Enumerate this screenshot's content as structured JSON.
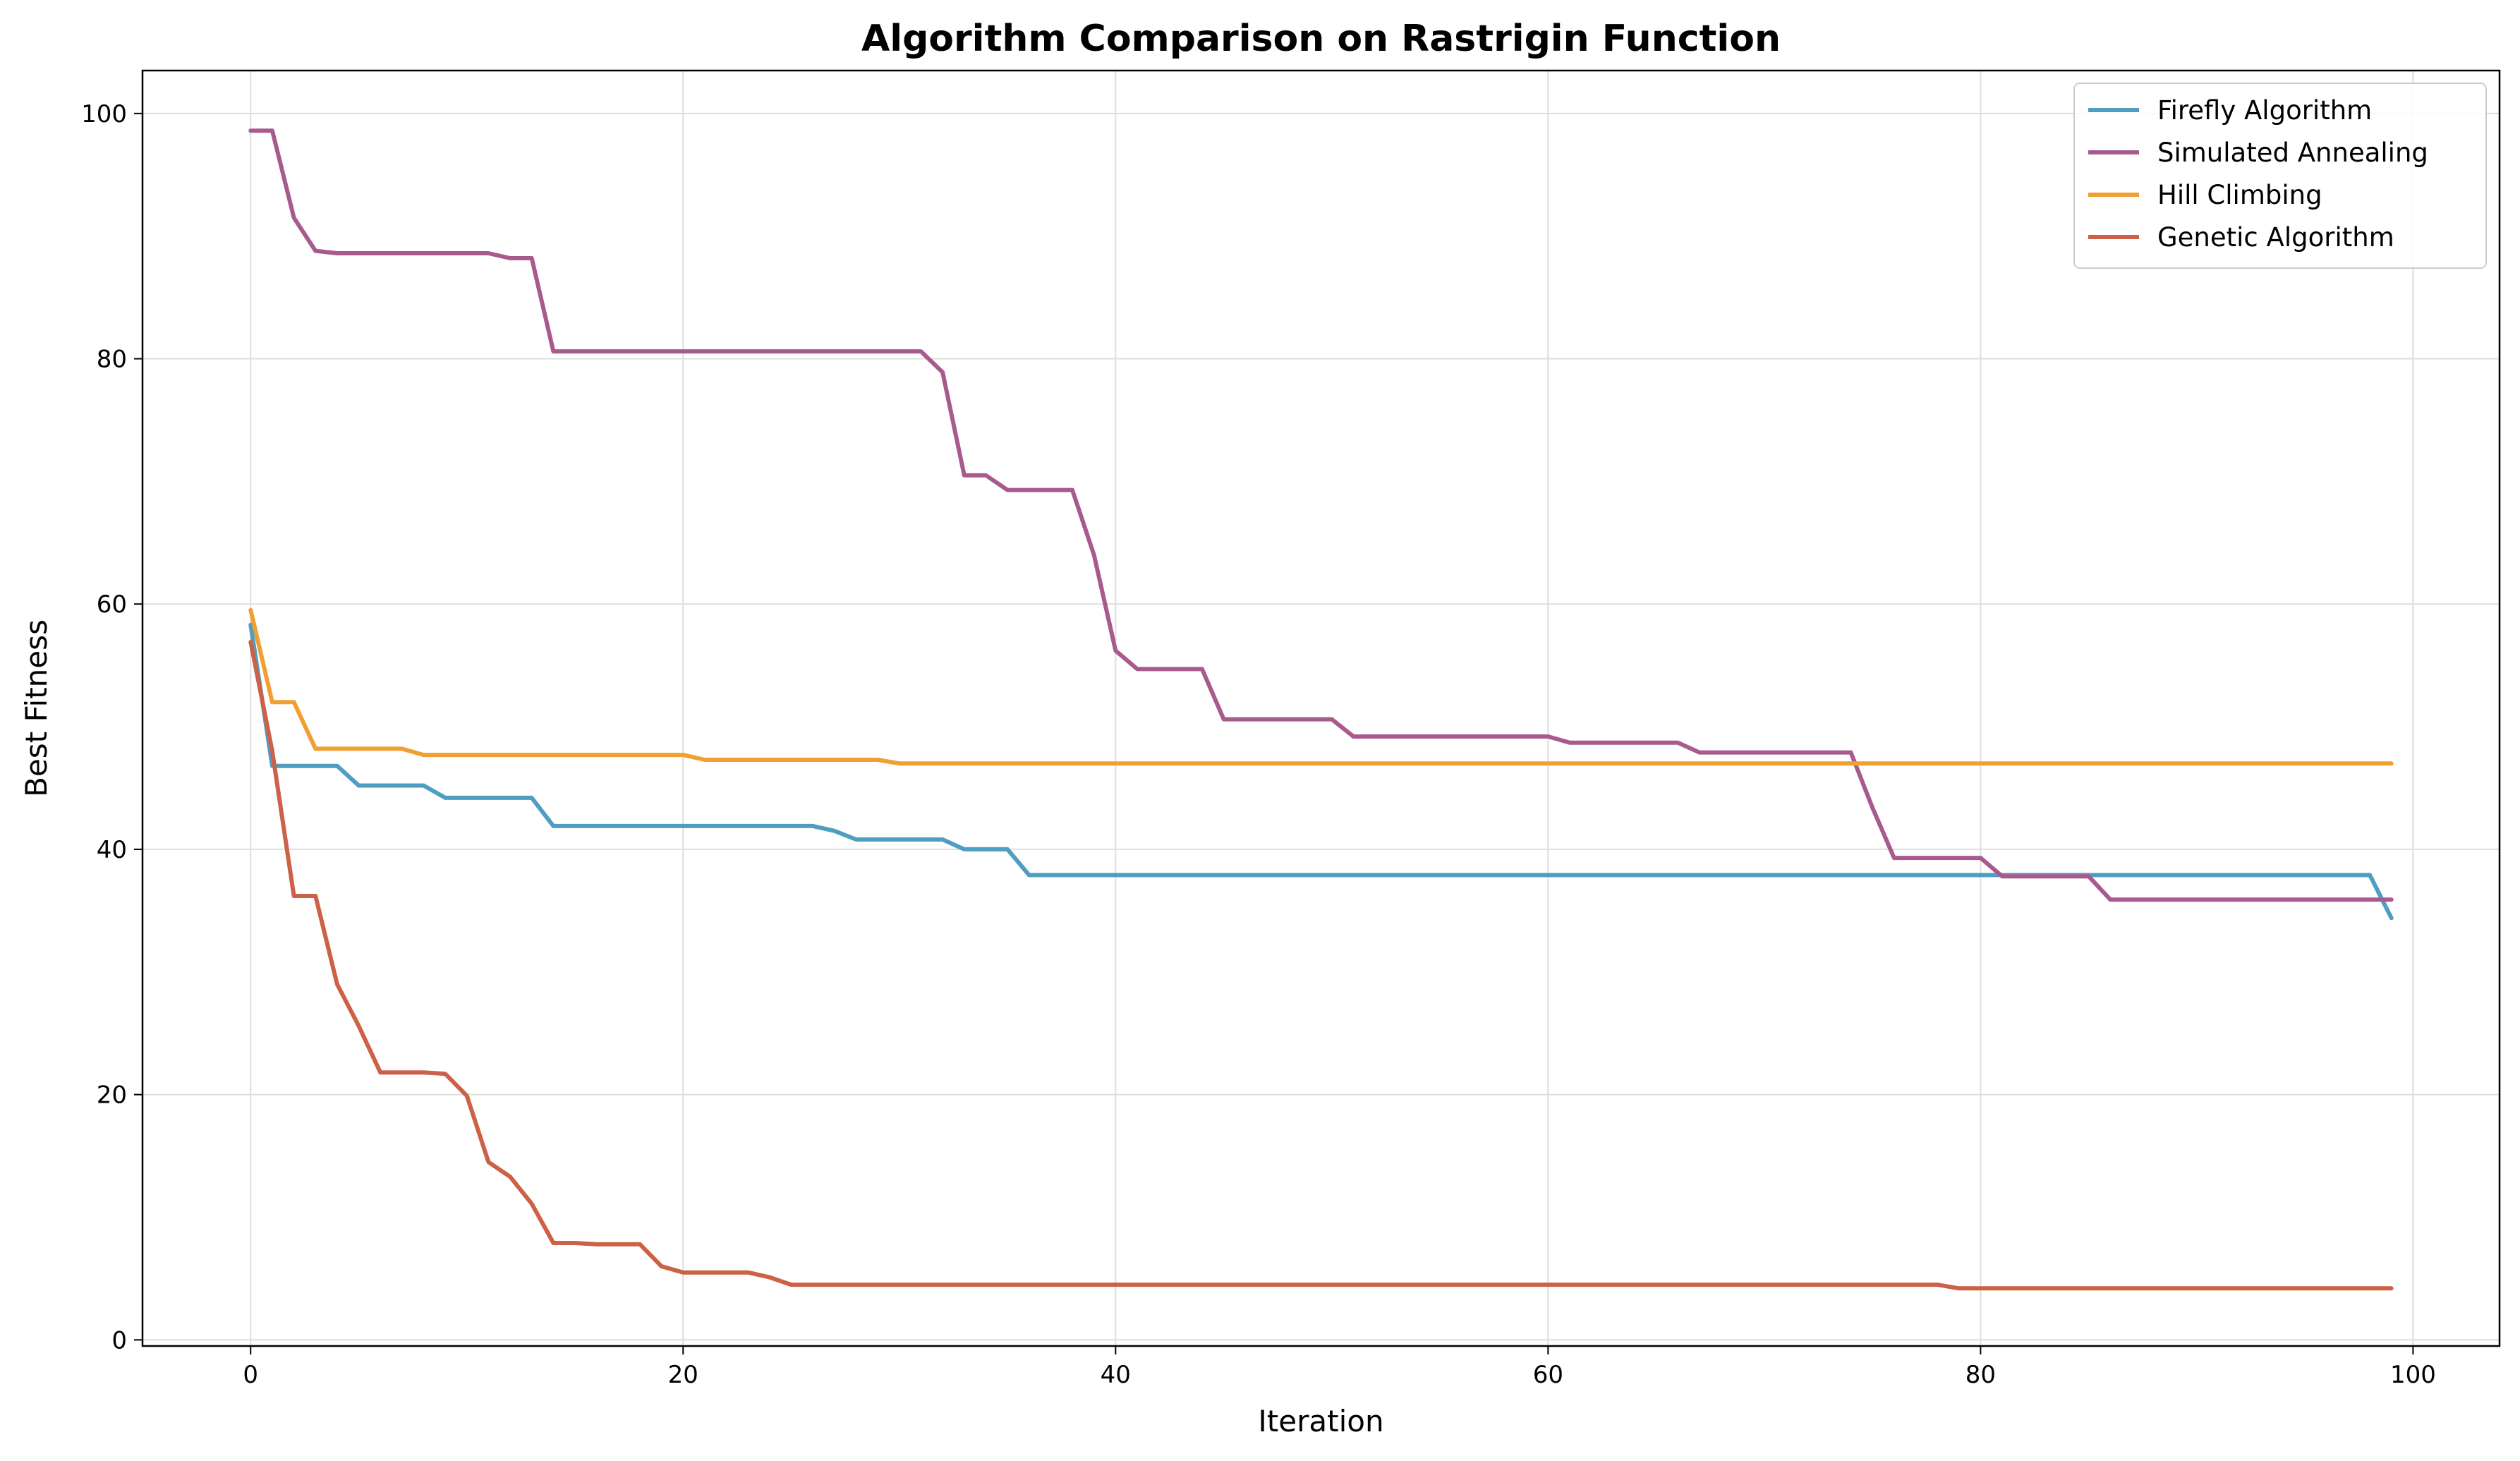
{
  "chart_data": {
    "type": "line",
    "title": "Algorithm Comparison on Rastrigin Function",
    "xlabel": "Iteration",
    "ylabel": "Best Fitness",
    "xlim": [
      -5,
      104
    ],
    "ylim": [
      -0.5,
      103.5
    ],
    "xticks": [
      0,
      20,
      40,
      60,
      80,
      100
    ],
    "yticks": [
      0,
      20,
      40,
      60,
      80,
      100
    ],
    "grid": true,
    "legend_position": "top-right",
    "series": [
      {
        "name": "Firefly Algorithm",
        "color": "#4f9ec2",
        "points": [
          [
            0,
            58.3
          ],
          [
            1,
            46.8
          ],
          [
            2,
            46.8
          ],
          [
            3,
            46.8
          ],
          [
            4,
            46.8
          ],
          [
            5,
            45.2
          ],
          [
            6,
            45.2
          ],
          [
            7,
            45.2
          ],
          [
            8,
            45.2
          ],
          [
            9,
            44.2
          ],
          [
            10,
            44.2
          ],
          [
            11,
            44.2
          ],
          [
            12,
            44.2
          ],
          [
            13,
            44.2
          ],
          [
            14,
            41.9
          ],
          [
            15,
            41.9
          ],
          [
            16,
            41.9
          ],
          [
            17,
            41.9
          ],
          [
            18,
            41.9
          ],
          [
            19,
            41.9
          ],
          [
            20,
            41.9
          ],
          [
            21,
            41.9
          ],
          [
            22,
            41.9
          ],
          [
            23,
            41.9
          ],
          [
            24,
            41.9
          ],
          [
            25,
            41.9
          ],
          [
            26,
            41.9
          ],
          [
            27,
            41.5
          ],
          [
            28,
            40.8
          ],
          [
            29,
            40.8
          ],
          [
            30,
            40.8
          ],
          [
            31,
            40.8
          ],
          [
            32,
            40.8
          ],
          [
            33,
            40.0
          ],
          [
            34,
            40.0
          ],
          [
            35,
            40.0
          ],
          [
            36,
            37.9
          ],
          [
            37,
            37.9
          ],
          [
            98,
            37.9
          ],
          [
            99,
            34.4
          ]
        ]
      },
      {
        "name": "Simulated Annealing",
        "color": "#a95a8d",
        "points": [
          [
            0,
            98.6
          ],
          [
            1,
            98.6
          ],
          [
            2,
            91.5
          ],
          [
            3,
            88.8
          ],
          [
            4,
            88.6
          ],
          [
            5,
            88.6
          ],
          [
            6,
            88.6
          ],
          [
            7,
            88.6
          ],
          [
            8,
            88.6
          ],
          [
            9,
            88.6
          ],
          [
            10,
            88.6
          ],
          [
            11,
            88.6
          ],
          [
            12,
            88.2
          ],
          [
            13,
            88.2
          ],
          [
            14,
            80.6
          ],
          [
            15,
            80.6
          ],
          [
            31,
            80.6
          ],
          [
            32,
            78.9
          ],
          [
            33,
            70.5
          ],
          [
            34,
            70.5
          ],
          [
            35,
            69.3
          ],
          [
            36,
            69.3
          ],
          [
            37,
            69.3
          ],
          [
            38,
            69.3
          ],
          [
            39,
            64.0
          ],
          [
            40,
            56.2
          ],
          [
            41,
            54.7
          ],
          [
            42,
            54.7
          ],
          [
            43,
            54.7
          ],
          [
            44,
            54.7
          ],
          [
            45,
            50.6
          ],
          [
            46,
            50.6
          ],
          [
            50,
            50.6
          ],
          [
            51,
            49.2
          ],
          [
            52,
            49.2
          ],
          [
            60,
            49.2
          ],
          [
            61,
            48.7
          ],
          [
            62,
            48.7
          ],
          [
            66,
            48.7
          ],
          [
            67,
            47.9
          ],
          [
            68,
            47.9
          ],
          [
            74,
            47.9
          ],
          [
            75,
            43.4
          ],
          [
            76,
            39.3
          ],
          [
            77,
            39.3
          ],
          [
            80,
            39.3
          ],
          [
            81,
            37.8
          ],
          [
            82,
            37.8
          ],
          [
            85,
            37.8
          ],
          [
            86,
            35.9
          ],
          [
            87,
            35.9
          ],
          [
            99,
            35.9
          ]
        ]
      },
      {
        "name": "Hill Climbing",
        "color": "#f0a032",
        "points": [
          [
            0,
            59.5
          ],
          [
            1,
            52.0
          ],
          [
            2,
            52.0
          ],
          [
            3,
            48.2
          ],
          [
            4,
            48.2
          ],
          [
            5,
            48.2
          ],
          [
            6,
            48.2
          ],
          [
            7,
            48.2
          ],
          [
            8,
            47.7
          ],
          [
            9,
            47.7
          ],
          [
            20,
            47.7
          ],
          [
            21,
            47.3
          ],
          [
            22,
            47.3
          ],
          [
            29,
            47.3
          ],
          [
            30,
            47.0
          ],
          [
            31,
            47.0
          ],
          [
            99,
            47.0
          ]
        ]
      },
      {
        "name": "Genetic Algorithm",
        "color": "#cc6147",
        "points": [
          [
            0,
            56.9
          ],
          [
            1,
            48.0
          ],
          [
            2,
            36.2
          ],
          [
            3,
            36.2
          ],
          [
            4,
            29.0
          ],
          [
            5,
            25.6
          ],
          [
            6,
            21.8
          ],
          [
            7,
            21.8
          ],
          [
            8,
            21.8
          ],
          [
            9,
            21.7
          ],
          [
            10,
            19.9
          ],
          [
            11,
            14.5
          ],
          [
            12,
            13.3
          ],
          [
            13,
            11.1
          ],
          [
            14,
            7.9
          ],
          [
            15,
            7.9
          ],
          [
            16,
            7.8
          ],
          [
            17,
            7.8
          ],
          [
            18,
            7.8
          ],
          [
            19,
            6.0
          ],
          [
            20,
            5.5
          ],
          [
            21,
            5.5
          ],
          [
            22,
            5.5
          ],
          [
            23,
            5.5
          ],
          [
            24,
            5.1
          ],
          [
            25,
            4.5
          ],
          [
            26,
            4.5
          ],
          [
            78,
            4.5
          ],
          [
            79,
            4.2
          ],
          [
            80,
            4.2
          ],
          [
            99,
            4.2
          ]
        ]
      }
    ]
  }
}
